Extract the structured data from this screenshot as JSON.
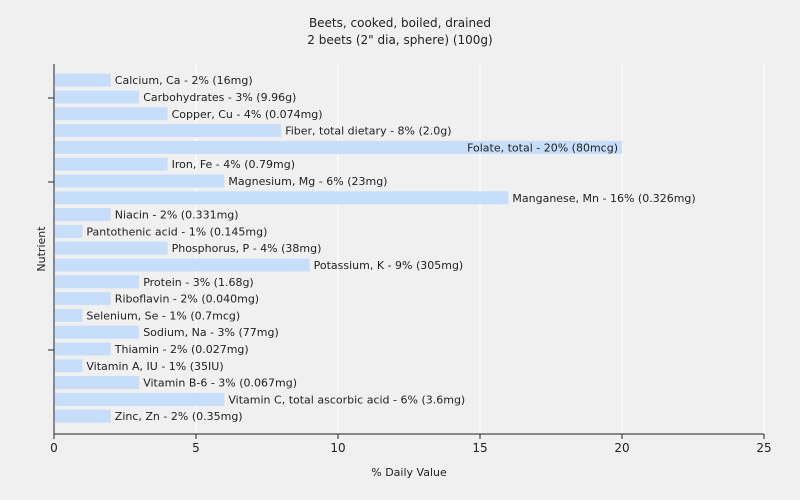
{
  "chart_data": {
    "type": "bar",
    "orientation": "horizontal",
    "title": "Beets, cooked, boiled, drained",
    "subtitle": "2 beets (2\" dia, sphere) (100g)",
    "xlabel": "% Daily Value",
    "ylabel": "Nutrient",
    "xlim": [
      0,
      25
    ],
    "xticks": [
      "0",
      "5",
      "10",
      "15",
      "20",
      "25"
    ],
    "grid": true,
    "bar_color": "#c6defa",
    "categories": [
      "Calcium, Ca - 2% (16mg)",
      "Carbohydrates - 3% (9.96g)",
      "Copper, Cu - 4% (0.074mg)",
      "Fiber, total dietary - 8% (2.0g)",
      "Folate, total - 20% (80mcg)",
      "Iron, Fe - 4% (0.79mg)",
      "Magnesium, Mg - 6% (23mg)",
      "Manganese, Mn - 16% (0.326mg)",
      "Niacin - 2% (0.331mg)",
      "Pantothenic acid - 1% (0.145mg)",
      "Phosphorus, P - 4% (38mg)",
      "Potassium, K - 9% (305mg)",
      "Protein - 3% (1.68g)",
      "Riboflavin - 2% (0.040mg)",
      "Selenium, Se - 1% (0.7mcg)",
      "Sodium, Na - 3% (77mg)",
      "Thiamin - 2% (0.027mg)",
      "Vitamin A, IU - 1% (35IU)",
      "Vitamin B-6 - 3% (0.067mg)",
      "Vitamin C, total ascorbic acid - 6% (3.6mg)",
      "Zinc, Zn - 2% (0.35mg)"
    ],
    "values": [
      2,
      3,
      4,
      8,
      20,
      4,
      6,
      16,
      2,
      1,
      4,
      9,
      3,
      2,
      1,
      3,
      2,
      1,
      3,
      6,
      2
    ]
  }
}
